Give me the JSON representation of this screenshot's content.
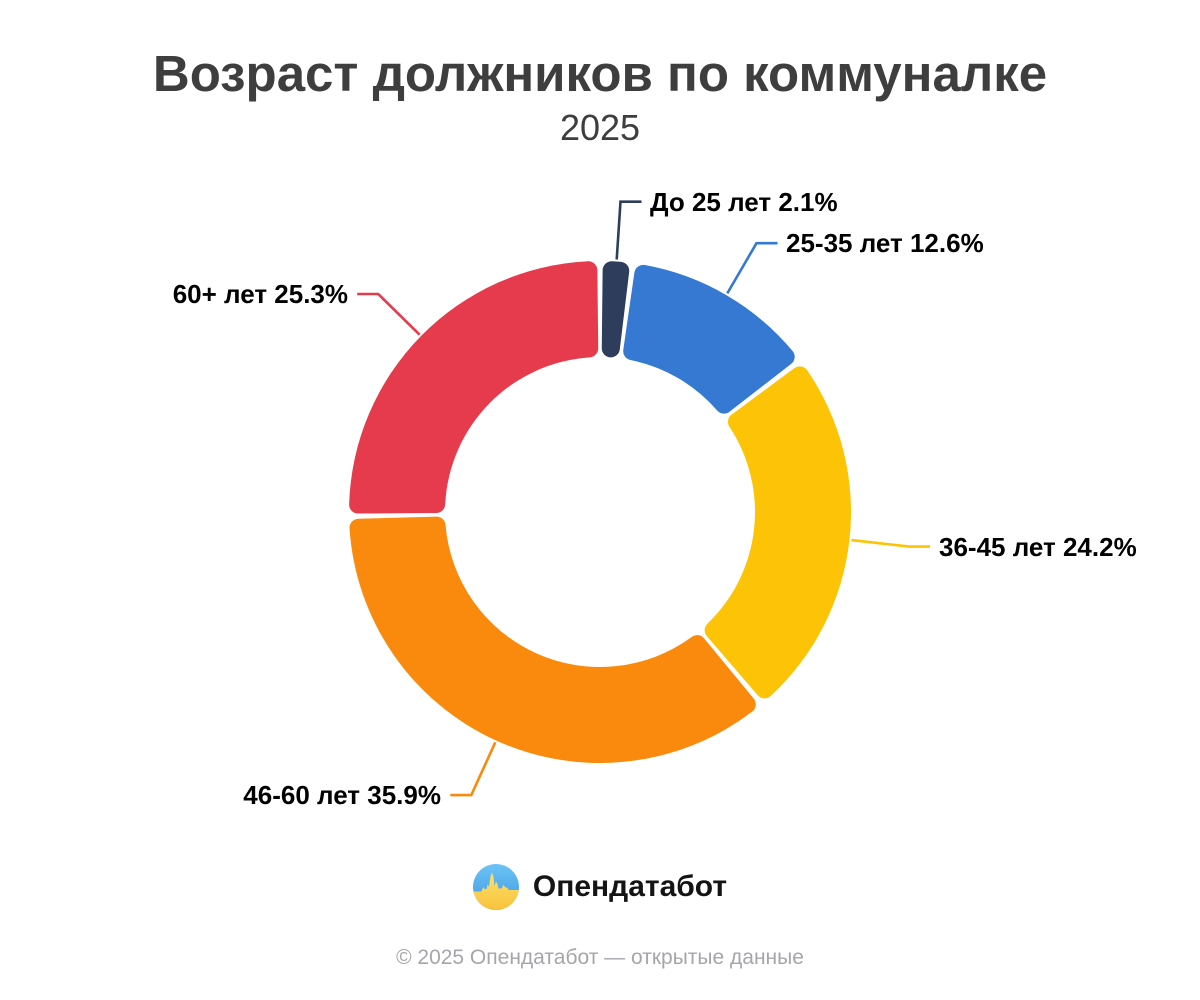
{
  "title": "Возраст должников по коммуналке",
  "subtitle": "2025",
  "chart_data": {
    "type": "pie",
    "donut": true,
    "title": "Возраст должников по коммуналке",
    "subtitle": "2025",
    "unit": "%",
    "direction": "clockwise",
    "start_angle_deg": 0,
    "label_format": "{label} {value}%",
    "slices": [
      {
        "label": "До 25 лет",
        "value": 2.1,
        "color": "#2e3d5c"
      },
      {
        "label": "25-35 лет",
        "value": 12.6,
        "color": "#3579d2"
      },
      {
        "label": "36-45 лет",
        "value": 24.2,
        "color": "#fdc306"
      },
      {
        "label": "46-60 лет",
        "value": 35.9,
        "color": "#f98a0d"
      },
      {
        "label": "60+ лет",
        "value": 25.3,
        "color": "#e63b4c"
      }
    ]
  },
  "branding": {
    "logo_text": "Опендатабот",
    "logo_icon": "opendatabot-logo",
    "logo_colors": {
      "top": "#4fb0ef",
      "bottom": "#fbCB45"
    }
  },
  "footer": {
    "copyright": "© 2025 Опендатабот — открытые данные"
  }
}
